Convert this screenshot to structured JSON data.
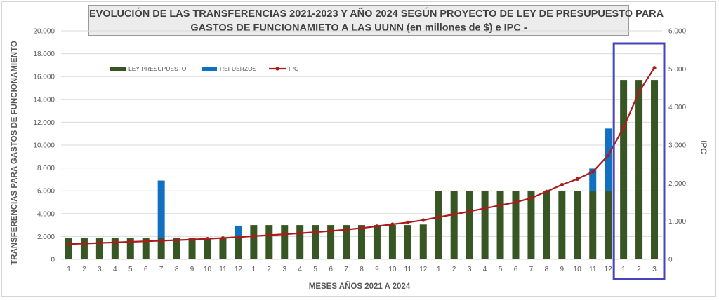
{
  "chart_data": {
    "type": "bar",
    "title_line1": "EVOLUCIÓN DE LAS TRANSFERENCIAS 2021-2023 Y AÑO 2024 SEGÚN PROYECTO DE LEY DE PRESUPUESTO PARA",
    "title_line2": "GASTOS DE FUNCIONAMIETO A LAS UUNN (en millones de $) e IPC -",
    "xlabel": "MESES AÑOS 2021  A 2024",
    "ylabel": "TRANSFERENCIAS PARA GASTOS DE FUNCIONAMIENTO",
    "y2label": "IPC",
    "ylim": [
      0,
      20000
    ],
    "y2lim": [
      0,
      6000
    ],
    "y_ticks": [
      "0",
      "2.000",
      "4.000",
      "6.000",
      "8.000",
      "10.000",
      "12.000",
      "14.000",
      "16.000",
      "18.000",
      "20.000"
    ],
    "y2_ticks": [
      "0",
      "1.000",
      "2.000",
      "3.000",
      "4.000",
      "5.000",
      "6.000"
    ],
    "categories": [
      "1",
      "2",
      "3",
      "4",
      "5",
      "6",
      "7",
      "8",
      "9",
      "10",
      "11",
      "12",
      "1",
      "2",
      "3",
      "4",
      "5",
      "6",
      "7",
      "8",
      "9",
      "10",
      "11",
      "12",
      "1",
      "2",
      "3",
      "4",
      "5",
      "6",
      "7",
      "8",
      "9",
      "10",
      "11",
      "12",
      "1",
      "2",
      "3"
    ],
    "legend_position": "top-left",
    "grid": true,
    "series": [
      {
        "name": "LEY PRESUPUESTO",
        "kind": "bar-stacked",
        "color": "#375623",
        "values": [
          1850,
          1850,
          1850,
          1850,
          1850,
          1850,
          1850,
          1850,
          1850,
          1900,
          1900,
          1900,
          3000,
          3000,
          3000,
          3000,
          3000,
          3000,
          3000,
          3000,
          3000,
          3000,
          3000,
          3050,
          6000,
          6000,
          6000,
          6000,
          5950,
          5950,
          5950,
          5950,
          5950,
          5950,
          5950,
          5950,
          15700,
          15700,
          15700
        ]
      },
      {
        "name": "REFUERZOS",
        "kind": "bar-stacked",
        "color": "#1270c0",
        "values": [
          0,
          0,
          0,
          0,
          0,
          0,
          5050,
          0,
          0,
          0,
          0,
          1050,
          0,
          0,
          0,
          0,
          0,
          0,
          0,
          0,
          0,
          0,
          0,
          0,
          0,
          0,
          0,
          0,
          0,
          0,
          0,
          0,
          0,
          0,
          2000,
          5500,
          0,
          0,
          0
        ]
      },
      {
        "name": "IPC",
        "kind": "line",
        "axis": "right",
        "color": "#a81c1c",
        "values": [
          400,
          415,
          430,
          445,
          460,
          475,
          490,
          505,
          520,
          540,
          560,
          585,
          610,
          635,
          660,
          685,
          715,
          745,
          780,
          820,
          870,
          920,
          970,
          1030,
          1110,
          1180,
          1260,
          1340,
          1420,
          1500,
          1610,
          1780,
          1960,
          2110,
          2300,
          2730,
          3460,
          4400,
          5030
        ]
      }
    ],
    "highlight": {
      "from_index": 36,
      "to_index": 38,
      "color": "#4444bb"
    }
  }
}
